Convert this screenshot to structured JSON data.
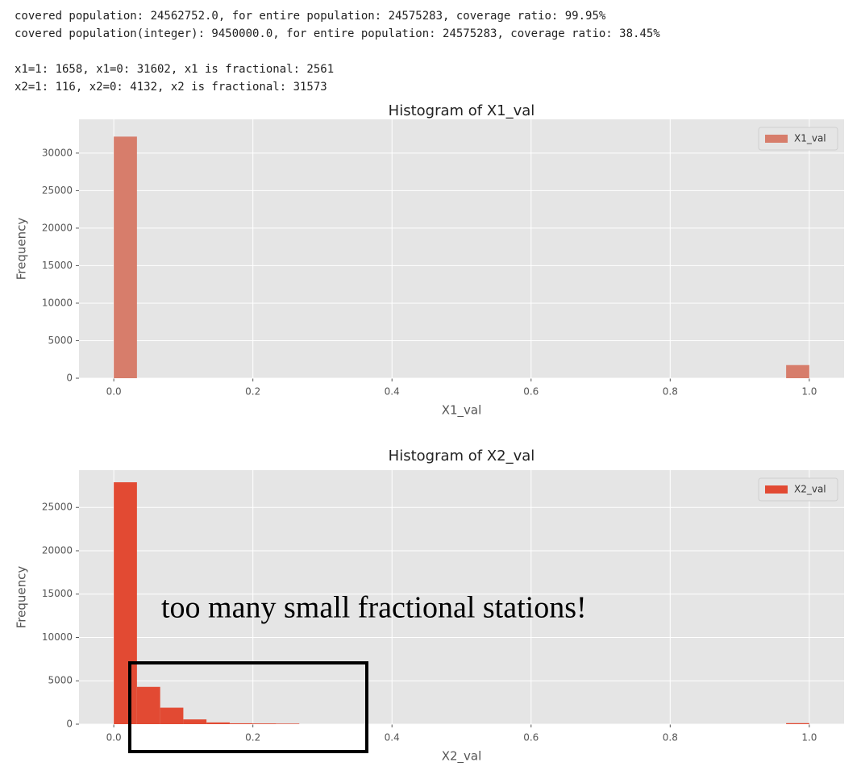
{
  "console": {
    "lines": [
      "covered population: 24562752.0, for entire population: 24575283, coverage ratio: 99.95%",
      "covered population(integer): 9450000.0, for entire population: 24575283, coverage ratio: 38.45%",
      "x1=1: 1658, x1=0: 31602, x1 is fractional: 2561",
      "x2=1: 116, x2=0: 4132, x2 is fractional: 31573"
    ]
  },
  "chart_data": [
    {
      "type": "histogram",
      "title": "Histogram of X1_val",
      "xlabel": "X1_val",
      "ylabel": "Frequency",
      "bins": [
        0,
        0.0333,
        0.0667,
        0.1,
        0.1333,
        0.1667,
        0.2,
        0.2333,
        0.2667,
        0.3,
        0.3333,
        0.3667,
        0.4,
        0.4333,
        0.4667,
        0.5,
        0.5333,
        0.5667,
        0.6,
        0.6333,
        0.6667,
        0.7,
        0.7333,
        0.7667,
        0.8,
        0.8333,
        0.8667,
        0.9,
        0.9333,
        0.9667,
        1
      ],
      "series": [
        {
          "name": "X1_val",
          "color": "#d77d6b",
          "values": [
            32200,
            0,
            0,
            0,
            0,
            0,
            0,
            0,
            0,
            0,
            0,
            0,
            0,
            0,
            0,
            0,
            0,
            0,
            0,
            0,
            0,
            0,
            0,
            0,
            0,
            0,
            0,
            0,
            0,
            1750
          ]
        }
      ],
      "xlim": [
        -0.05,
        1.05
      ],
      "ylim": [
        0,
        34500
      ],
      "xticks": [
        {
          "value": 0,
          "label": "0.0"
        },
        0.2,
        0.4,
        0.6,
        0.8,
        {
          "value": 1,
          "label": "1.0"
        }
      ],
      "yticks": [
        0,
        5000,
        10000,
        15000,
        20000,
        25000,
        30000
      ],
      "grid": true,
      "legend": "upper right"
    },
    {
      "type": "histogram",
      "title": "Histogram of X2_val",
      "xlabel": "X2_val",
      "ylabel": "Frequency",
      "annotation": "too many small fractional stations!",
      "bins": [
        0,
        0.0333,
        0.0667,
        0.1,
        0.1333,
        0.1667,
        0.2,
        0.2333,
        0.2667,
        0.3,
        0.3333,
        0.3667,
        0.4,
        0.4333,
        0.4667,
        0.5,
        0.5333,
        0.5667,
        0.6,
        0.6333,
        0.6667,
        0.7,
        0.7333,
        0.7667,
        0.8,
        0.8333,
        0.8667,
        0.9,
        0.9333,
        0.9667,
        1
      ],
      "series": [
        {
          "name": "X2_val",
          "color": "#e24a33",
          "values": [
            27900,
            4300,
            1900,
            550,
            200,
            100,
            80,
            60,
            0,
            0,
            0,
            0,
            0,
            0,
            0,
            0,
            0,
            0,
            0,
            0,
            0,
            0,
            0,
            0,
            0,
            0,
            0,
            0,
            0,
            116
          ]
        }
      ],
      "xlim": [
        -0.05,
        1.05
      ],
      "ylim": [
        0,
        29300
      ],
      "xticks": [
        {
          "value": 0,
          "label": "0.0"
        },
        0.2,
        0.4,
        0.6,
        0.8,
        {
          "value": 1,
          "label": "1.0"
        }
      ],
      "yticks": [
        0,
        5000,
        10000,
        15000,
        20000,
        25000
      ],
      "grid": true,
      "legend": "upper right"
    }
  ]
}
